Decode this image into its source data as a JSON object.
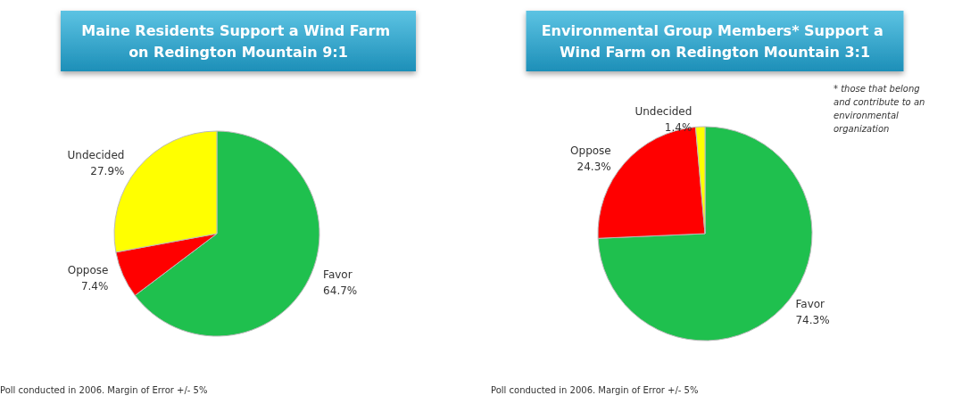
{
  "chart_data": [
    {
      "type": "pie",
      "title": "Maine Residents Support a Wind Farm on Redington Mountain 9:1",
      "categories": [
        "Favor",
        "Oppose",
        "Undecided"
      ],
      "values": [
        64.7,
        7.4,
        27.9
      ],
      "value_labels": [
        "64.7%",
        "7.4%",
        "27.9%"
      ],
      "colors": [
        "#1fc04e",
        "#ff0000",
        "#ffff00"
      ],
      "legend": false,
      "annotations": [
        "Poll conducted in 2006. Margin of Error +/- 5%"
      ]
    },
    {
      "type": "pie",
      "title": "Environmental Group Members* Support a Wind Farm on Redington Mountain 3:1",
      "categories": [
        "Favor",
        "Oppose",
        "Undecided"
      ],
      "values": [
        74.3,
        24.3,
        1.4
      ],
      "value_labels": [
        "74.3%",
        "24.3%",
        "1.4%"
      ],
      "colors": [
        "#1fc04e",
        "#ff0000",
        "#ffff00"
      ],
      "legend": false,
      "annotations": [
        "* those that belong and contribute to an environmental organization",
        "Poll conducted in 2006. Margin of Error +/- 5%"
      ]
    }
  ]
}
